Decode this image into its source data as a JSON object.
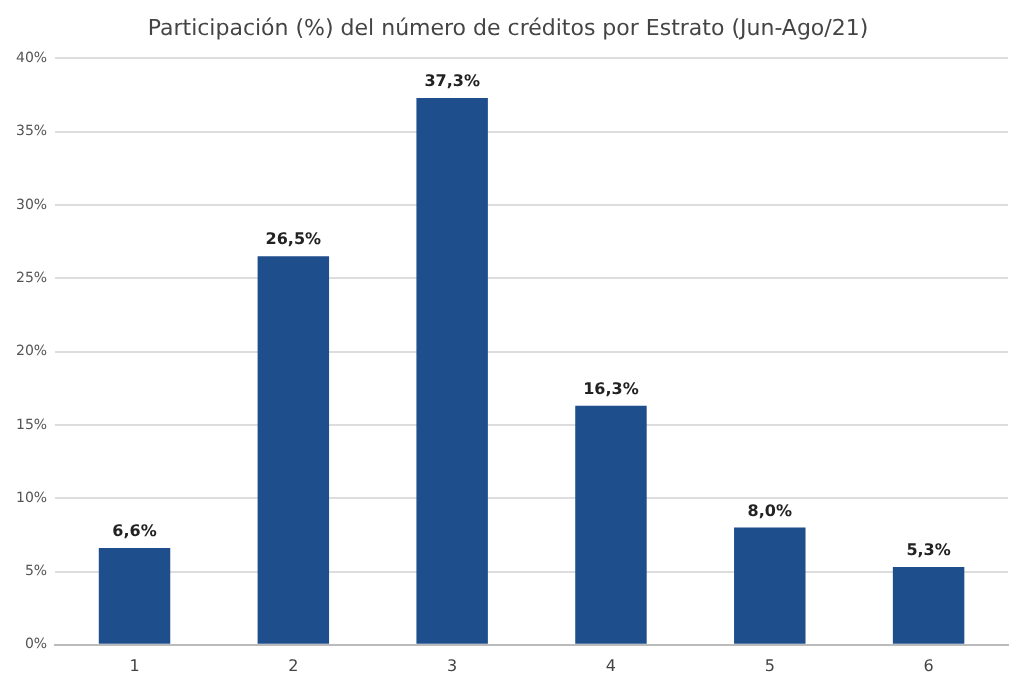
{
  "chart_data": {
    "type": "bar",
    "title": "Participación (%) del número de créditos por Estrato (Jun-Ago/21)",
    "categories": [
      "1",
      "2",
      "3",
      "4",
      "5",
      "6"
    ],
    "values": [
      6.6,
      26.5,
      37.3,
      16.3,
      8.0,
      5.3
    ],
    "value_labels": [
      "6,6%",
      "26,5%",
      "37,3%",
      "16,3%",
      "8,0%",
      "5,3%"
    ],
    "color": "#1f4e8c",
    "ylim": [
      0,
      40
    ],
    "yticks": [
      {
        "value": 0,
        "label": "0%"
      },
      {
        "value": 5,
        "label": "5%"
      },
      {
        "value": 10,
        "label": "10%"
      },
      {
        "value": 15,
        "label": "15%"
      },
      {
        "value": 20,
        "label": "20%"
      },
      {
        "value": 25,
        "label": "25%"
      },
      {
        "value": 30,
        "label": "30%"
      },
      {
        "value": 35,
        "label": "35%"
      },
      {
        "value": 40,
        "label": "40%"
      }
    ],
    "grid": "y",
    "legend": false
  }
}
